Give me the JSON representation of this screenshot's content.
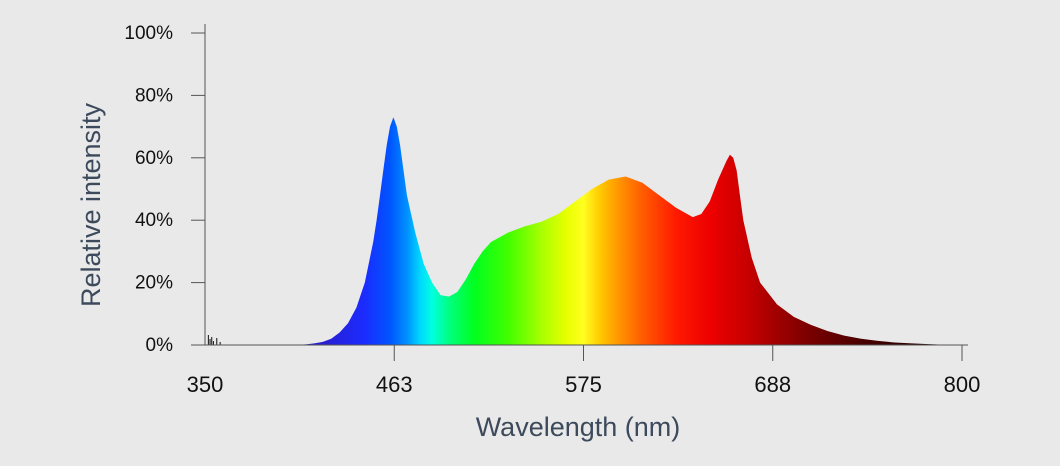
{
  "chart_data": {
    "type": "area",
    "title": "",
    "xlabel": "Wavelength (nm)",
    "ylabel": "Relative intensity",
    "xlim": [
      350,
      800
    ],
    "ylim": [
      0,
      100
    ],
    "x_ticks": [
      "350",
      "463",
      "575",
      "688",
      "800"
    ],
    "y_ticks": [
      "0%",
      "20%",
      "40%",
      "60%",
      "80%",
      "100%"
    ],
    "grid": false,
    "legend": "none",
    "fill": "visible-spectrum gradient by wavelength",
    "series": [
      {
        "x": [
          350,
          360,
          370,
          380,
          390,
          400,
          410,
          415,
          420,
          425,
          430,
          435,
          440,
          445,
          450,
          452,
          454,
          456,
          458,
          460,
          462,
          464,
          466,
          468,
          470,
          475,
          480,
          485,
          490,
          495,
          500,
          505,
          510,
          515,
          520,
          530,
          540,
          550,
          560,
          570,
          580,
          590,
          600,
          610,
          620,
          630,
          640,
          645,
          650,
          655,
          660,
          662,
          664,
          666,
          668,
          670,
          675,
          680,
          690,
          700,
          710,
          720,
          730,
          740,
          750,
          760,
          770,
          780,
          790,
          800
        ],
        "y": [
          0,
          0,
          0,
          0,
          0,
          0,
          0.2,
          0.5,
          1,
          2,
          4,
          7,
          12,
          20,
          33,
          40,
          48,
          56,
          64,
          70,
          73,
          70,
          64,
          56,
          48,
          36,
          26,
          20,
          16,
          15.5,
          17,
          21,
          26,
          30,
          33,
          36,
          38,
          39.5,
          42,
          46,
          50,
          53,
          54,
          52,
          48,
          44,
          41,
          42,
          46,
          53,
          59,
          61,
          60,
          56,
          48,
          40,
          28,
          20,
          13,
          9,
          6.5,
          4.5,
          3,
          2,
          1.3,
          0.8,
          0.5,
          0.3,
          0.1,
          0
        ]
      }
    ]
  }
}
